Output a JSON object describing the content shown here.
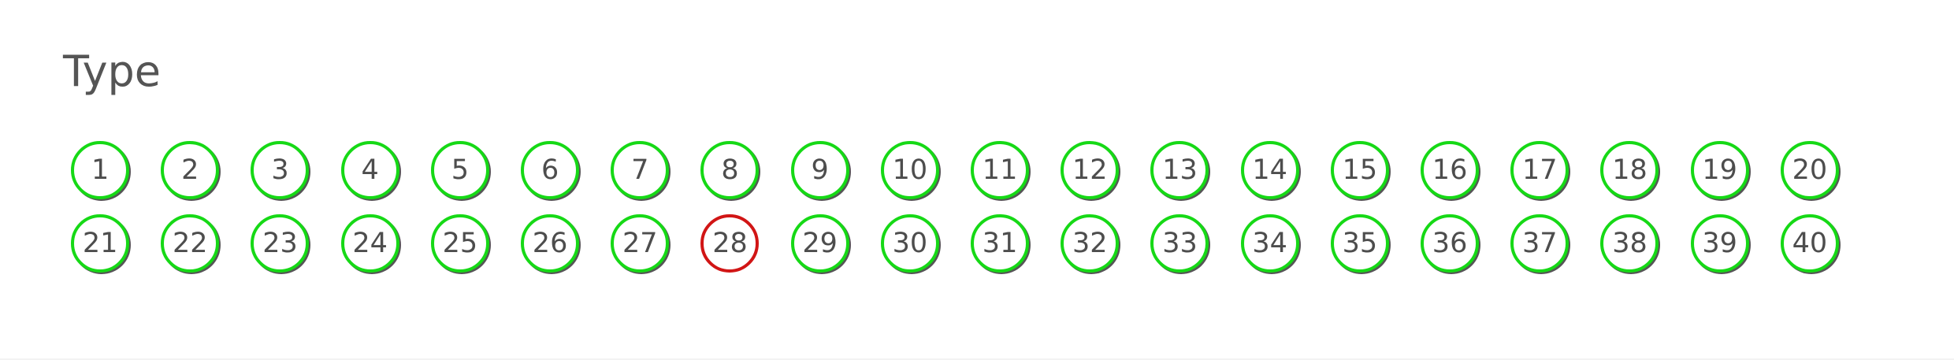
{
  "heading": "Type",
  "colors": {
    "ok": "#16d916",
    "bad": "#d11515",
    "text": "#4d4d4d"
  },
  "badges": [
    {
      "label": "1",
      "status": "ok"
    },
    {
      "label": "2",
      "status": "ok"
    },
    {
      "label": "3",
      "status": "ok"
    },
    {
      "label": "4",
      "status": "ok"
    },
    {
      "label": "5",
      "status": "ok"
    },
    {
      "label": "6",
      "status": "ok"
    },
    {
      "label": "7",
      "status": "ok"
    },
    {
      "label": "8",
      "status": "ok"
    },
    {
      "label": "9",
      "status": "ok"
    },
    {
      "label": "10",
      "status": "ok"
    },
    {
      "label": "11",
      "status": "ok"
    },
    {
      "label": "12",
      "status": "ok"
    },
    {
      "label": "13",
      "status": "ok"
    },
    {
      "label": "14",
      "status": "ok"
    },
    {
      "label": "15",
      "status": "ok"
    },
    {
      "label": "16",
      "status": "ok"
    },
    {
      "label": "17",
      "status": "ok"
    },
    {
      "label": "18",
      "status": "ok"
    },
    {
      "label": "19",
      "status": "ok"
    },
    {
      "label": "20",
      "status": "ok"
    },
    {
      "label": "21",
      "status": "ok"
    },
    {
      "label": "22",
      "status": "ok"
    },
    {
      "label": "23",
      "status": "ok"
    },
    {
      "label": "24",
      "status": "ok"
    },
    {
      "label": "25",
      "status": "ok"
    },
    {
      "label": "26",
      "status": "ok"
    },
    {
      "label": "27",
      "status": "ok"
    },
    {
      "label": "28",
      "status": "bad"
    },
    {
      "label": "29",
      "status": "ok"
    },
    {
      "label": "30",
      "status": "ok"
    },
    {
      "label": "31",
      "status": "ok"
    },
    {
      "label": "32",
      "status": "ok"
    },
    {
      "label": "33",
      "status": "ok"
    },
    {
      "label": "34",
      "status": "ok"
    },
    {
      "label": "35",
      "status": "ok"
    },
    {
      "label": "36",
      "status": "ok"
    },
    {
      "label": "37",
      "status": "ok"
    },
    {
      "label": "38",
      "status": "ok"
    },
    {
      "label": "39",
      "status": "ok"
    },
    {
      "label": "40",
      "status": "ok"
    }
  ]
}
